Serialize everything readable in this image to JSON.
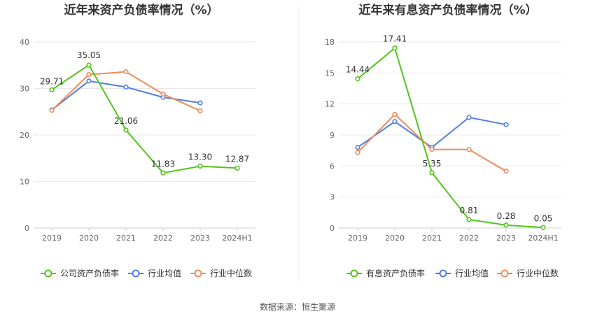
{
  "source_text": "数据来源：恒生聚源",
  "chart_data": [
    {
      "type": "line",
      "title": "近年来资产负债率情况（%）",
      "categories": [
        "2019",
        "2020",
        "2021",
        "2022",
        "2023",
        "2024H1"
      ],
      "ylim": [
        0,
        40
      ],
      "yticks": [
        "0",
        "10",
        "20",
        "30",
        "40"
      ],
      "grid": true,
      "legend_position": "bottom",
      "series": [
        {
          "name": "公司资产负债率",
          "color": "#52c41a",
          "values": [
            29.71,
            35.05,
            21.06,
            11.83,
            13.3,
            12.87
          ],
          "labels": [
            "29.71",
            "35.05",
            "21.06",
            "11.83",
            "13.30",
            "12.87"
          ]
        },
        {
          "name": "行业均值",
          "color": "#4e7fdc",
          "values": [
            25.4,
            31.6,
            30.3,
            28.1,
            26.9,
            null
          ]
        },
        {
          "name": "行业中位数",
          "color": "#f08a5d",
          "values": [
            25.3,
            33.0,
            33.6,
            28.8,
            25.2,
            null
          ]
        }
      ]
    },
    {
      "type": "line",
      "title": "近年来有息资产负债率情况（%）",
      "categories": [
        "2019",
        "2020",
        "2021",
        "2022",
        "2023",
        "2024H1"
      ],
      "ylim": [
        0,
        18
      ],
      "yticks": [
        "0",
        "3",
        "6",
        "9",
        "12",
        "15",
        "18"
      ],
      "grid": true,
      "legend_position": "bottom",
      "series": [
        {
          "name": "有息资产负债率",
          "color": "#52c41a",
          "values": [
            14.44,
            17.41,
            5.35,
            0.81,
            0.28,
            0.05
          ],
          "labels": [
            "14.44",
            "17.41",
            "5.35",
            "0.81",
            "0.28",
            "0.05"
          ]
        },
        {
          "name": "行业均值",
          "color": "#4e7fdc",
          "values": [
            7.8,
            10.3,
            7.8,
            10.7,
            10.0,
            null
          ]
        },
        {
          "name": "行业中位数",
          "color": "#f08a5d",
          "values": [
            7.3,
            11.0,
            7.6,
            7.6,
            5.5,
            null
          ]
        }
      ]
    }
  ]
}
